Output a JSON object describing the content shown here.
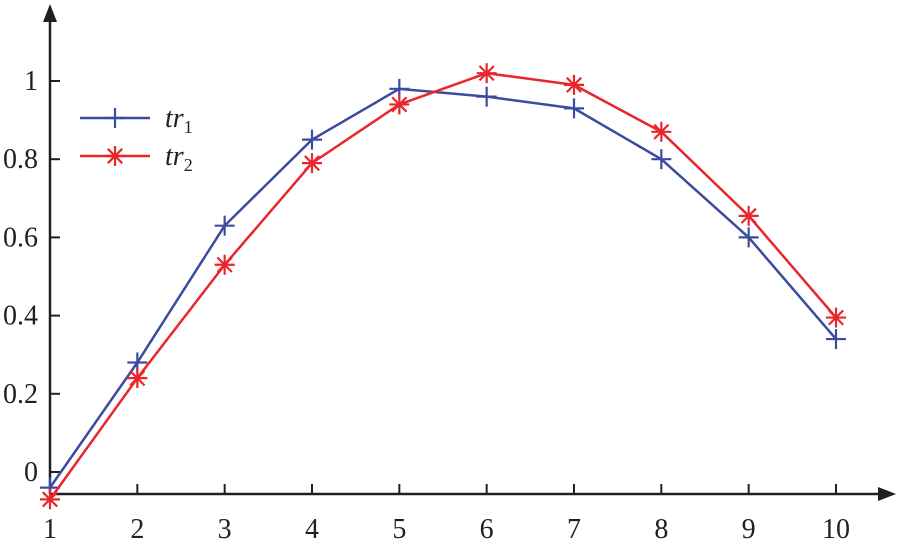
{
  "chart_data": {
    "type": "line",
    "title": "",
    "xlabel": "",
    "ylabel": "",
    "x": [
      1,
      2,
      3,
      4,
      5,
      6,
      7,
      8,
      9,
      10
    ],
    "xlim": [
      1,
      10.6
    ],
    "ylim": [
      -0.08,
      1.2
    ],
    "xticks": [
      1,
      2,
      3,
      4,
      5,
      6,
      7,
      8,
      9,
      10
    ],
    "xtick_labels": [
      "1",
      "2",
      "3",
      "4",
      "5",
      "6",
      "7",
      "8",
      "9",
      "10"
    ],
    "yticks": [
      0,
      0.2,
      0.4,
      0.6,
      0.8,
      1
    ],
    "ytick_labels": [
      "0",
      "0.2",
      "0.4",
      "0.6",
      "0.8",
      "1"
    ],
    "grid": false,
    "legend_position": "top-left",
    "series": [
      {
        "name": "tr1",
        "label_main": "tr",
        "label_sub": "1",
        "color": "#3b4ca0",
        "marker": "plus",
        "values": [
          -0.04,
          0.28,
          0.63,
          0.85,
          0.98,
          0.96,
          0.93,
          0.8,
          0.6,
          0.34
        ]
      },
      {
        "name": "tr2",
        "label_main": "tr",
        "label_sub": "2",
        "color": "#e8262b",
        "marker": "asterisk",
        "values": [
          -0.07,
          0.24,
          0.53,
          0.79,
          0.94,
          1.02,
          0.99,
          0.87,
          0.655,
          0.395
        ]
      }
    ]
  }
}
